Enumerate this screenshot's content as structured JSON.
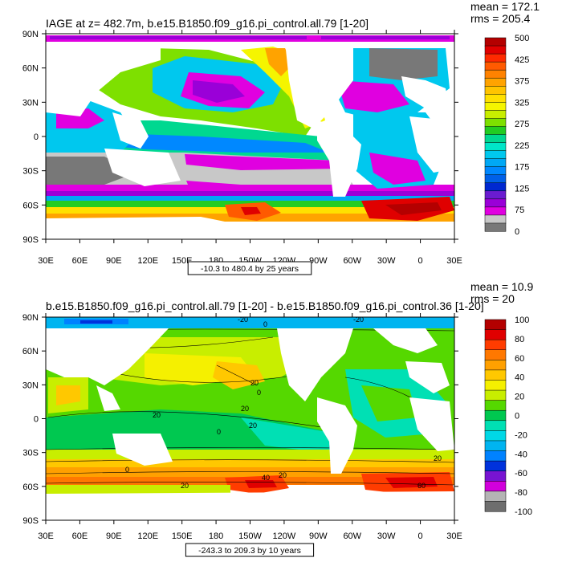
{
  "panels": [
    {
      "title": "IAGE at z= 482.7m, b.e15.B1850.f09_g16.pi_control.all.79 [1-20]",
      "stat_mean": "mean = 172.1",
      "stat_rms": "rms = 205.4",
      "range_label": "-10.3 to 480.4 by 25 years",
      "colorbar_labels": [
        "500",
        "425",
        "375",
        "325",
        "275",
        "225",
        "175",
        "125",
        "75",
        "0"
      ],
      "colorbar_colors": [
        "#b40000",
        "#e00000",
        "#ff2a00",
        "#ff5a00",
        "#ff8200",
        "#ffa300",
        "#ffc400",
        "#ffe000",
        "#f5f500",
        "#c8ee00",
        "#7ee000",
        "#22cc22",
        "#00d890",
        "#00e6c8",
        "#00c8ee",
        "#00a8f5",
        "#0088ff",
        "#0060e8",
        "#0028d0",
        "#6a1cd0",
        "#9a00d8",
        "#e000e0",
        "#c8c8c8",
        "#787878"
      ],
      "contour_labels": []
    },
    {
      "title": "b.e15.B1850.f09_g16.pi_control.all.79 [1-20] - b.e15.B1850.f09_g16.pi_control.36 [1-20]",
      "stat_mean": "mean = 10.9",
      "stat_rms": "rms = 20",
      "range_label": "-243.3 to 209.3 by 10 years",
      "colorbar_labels": [
        "100",
        "80",
        "60",
        "40",
        "20",
        "0",
        "-20",
        "-40",
        "-60",
        "-80",
        "-100"
      ],
      "colorbar_colors": [
        "#b40000",
        "#e00000",
        "#ff3c00",
        "#ff7800",
        "#ffa000",
        "#ffc800",
        "#f5f000",
        "#c8ee00",
        "#55d800",
        "#00c850",
        "#00e0b4",
        "#00d8e6",
        "#00b4f0",
        "#0082ff",
        "#0032dc",
        "#7814d2",
        "#d200dc",
        "#b4b4b4",
        "#6e6e6e"
      ],
      "contour_labels": [
        "-20",
        "0",
        "-20",
        "20",
        "0",
        "20",
        "20",
        "0",
        "20",
        "0",
        "20",
        "40",
        "20",
        "60",
        "20"
      ]
    }
  ],
  "axes": {
    "lat_labels": [
      "90N",
      "60N",
      "30N",
      "0",
      "30S",
      "60S",
      "90S"
    ],
    "lon_labels": [
      "30E",
      "60E",
      "90E",
      "120E",
      "150E",
      "180",
      "150W",
      "120W",
      "90W",
      "60W",
      "30W",
      "0",
      "30E"
    ]
  }
}
